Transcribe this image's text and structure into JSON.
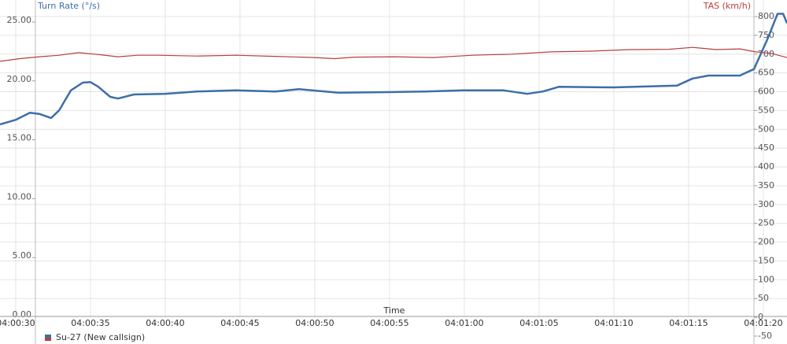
{
  "chart_data": {
    "type": "line",
    "y_label": "Turn Rate (°/s)",
    "y2_label": "TAS (km/h)",
    "x_label": "Time",
    "xlim": [
      28.95,
      81.58
    ],
    "xticks": [
      {
        "value": 30,
        "label": "04:00:30"
      },
      {
        "value": 35,
        "label": "04:00:35"
      },
      {
        "value": 40,
        "label": "04:00:40"
      },
      {
        "value": 45,
        "label": "04:00:45"
      },
      {
        "value": 50,
        "label": "04:00:50"
      },
      {
        "value": 55,
        "label": "04:00:55"
      },
      {
        "value": 60,
        "label": "04:01:00"
      },
      {
        "value": 65,
        "label": "04:01:05"
      },
      {
        "value": 70,
        "label": "04:01:10"
      },
      {
        "value": 75,
        "label": "04:01:15"
      },
      {
        "value": 80,
        "label": "04:01:20"
      }
    ],
    "ylim": [
      0,
      26.87
    ],
    "yticks": [
      {
        "value": 0,
        "label": "0.00"
      },
      {
        "value": 5,
        "label": "5.00"
      },
      {
        "value": 10,
        "label": "10.00"
      },
      {
        "value": 15,
        "label": "15.00"
      },
      {
        "value": 20,
        "label": "20.00"
      },
      {
        "value": 25,
        "label": "25.00"
      }
    ],
    "y2lim": [
      -50,
      844
    ],
    "y2ticks": [
      -50,
      0,
      50,
      100,
      150,
      200,
      250,
      300,
      350,
      400,
      450,
      500,
      550,
      600,
      650,
      700,
      750,
      800
    ],
    "grid": true,
    "legend": "Su-27 (New callsign)",
    "series": [
      {
        "name": "Turn Rate",
        "color": "#3d6ea8",
        "x": [
          28.95,
          30,
          30.95,
          31.58,
          32.37,
          32.9,
          33.69,
          34.48,
          35,
          35.53,
          36.32,
          36.84,
          37.9,
          39.95,
          42.11,
          44.74,
          47.37,
          48.95,
          51.58,
          54.95,
          57.37,
          59.95,
          62.63,
          64.21,
          65.26,
          66.32,
          70,
          74.21,
          75.26,
          76.32,
          78.42,
          79.37,
          80.26,
          80.95,
          81.32,
          81.58
        ],
        "values": [
          16.3,
          16.7,
          17.3,
          17.2,
          16.85,
          17.5,
          19.2,
          19.85,
          19.9,
          19.5,
          18.65,
          18.5,
          18.85,
          18.9,
          19.1,
          19.2,
          19.1,
          19.3,
          19.0,
          19.05,
          19.1,
          19.2,
          19.2,
          18.9,
          19.1,
          19.5,
          19.45,
          19.6,
          20.2,
          20.45,
          20.45,
          21.0,
          23.5,
          25.7,
          25.7,
          24.9
        ]
      },
      {
        "name": "TAS",
        "color": "#b5403f",
        "axis": "y2",
        "x": [
          28.95,
          30.27,
          31.58,
          32.9,
          34.21,
          35.53,
          36.84,
          38.16,
          39.48,
          42.11,
          44.74,
          47.37,
          50,
          51.32,
          52.63,
          55.27,
          57.9,
          60.53,
          63.16,
          65.79,
          68.42,
          71.06,
          73.69,
          75.27,
          76.84,
          78.42,
          79.48,
          80.53,
          81.58
        ],
        "values": [
          681,
          688,
          693,
          697,
          704,
          699,
          693,
          697,
          697,
          695,
          697,
          694,
          691,
          688,
          692,
          693,
          691,
          697,
          700,
          706,
          708,
          712,
          713,
          718,
          712,
          714,
          706,
          702,
          691
        ]
      }
    ]
  }
}
